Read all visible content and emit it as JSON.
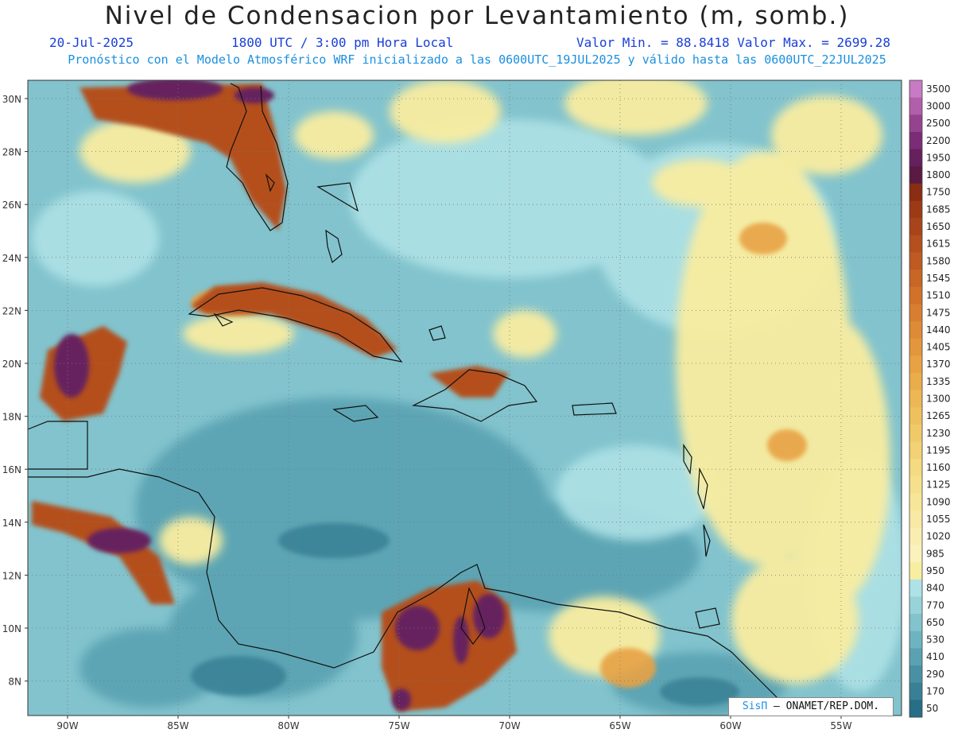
{
  "title": "Nivel de Condensacion por Levantamiento (m, somb.)",
  "date": "20-Jul-2025",
  "time": "1800 UTC / 3:00 pm Hora Local",
  "value_range": "Valor Min. = 88.8418  Valor Max. = 2699.28",
  "model_info": "Pronóstico con el Modelo Atmosférico WRF inicializado a las 0600UTC_19JUL2025 y válido hasta las  0600UTC_22JUL2025",
  "lat_labels": [
    "30N",
    "28N",
    "26N",
    "24N",
    "22N",
    "20N",
    "18N",
    "16N",
    "14N",
    "12N",
    "10N",
    "8N"
  ],
  "lon_labels": [
    "90W",
    "85W",
    "80W",
    "75W",
    "70W",
    "65W",
    "60W",
    "55W"
  ],
  "colorbar": {
    "levels": [
      "3500",
      "3000",
      "2500",
      "2200",
      "1950",
      "1800",
      "1750",
      "1685",
      "1650",
      "1615",
      "1580",
      "1545",
      "1510",
      "1475",
      "1440",
      "1405",
      "1370",
      "1335",
      "1300",
      "1265",
      "1230",
      "1195",
      "1160",
      "1125",
      "1090",
      "1055",
      "1020",
      "985",
      "950",
      "840",
      "770",
      "650",
      "530",
      "410",
      "290",
      "170",
      "50"
    ],
    "colors": [
      "#c87ac4",
      "#b25fab",
      "#96438f",
      "#7c2c77",
      "#66205e",
      "#5a1a44",
      "#8a2d12",
      "#9c3a16",
      "#a8441a",
      "#b44f1e",
      "#be5a22",
      "#c86626",
      "#d0722a",
      "#d87e30",
      "#de8a36",
      "#e3963c",
      "#e8a244",
      "#eaad4c",
      "#ecb754",
      "#eec15e",
      "#f0ca68",
      "#f2d274",
      "#f4da80",
      "#f6e08c",
      "#f7e698",
      "#f8eaa4",
      "#f9eeb0",
      "#faf2bc",
      "#f9eda0",
      "#aee2e6",
      "#98d3da",
      "#82c3cd",
      "#6eb3c0",
      "#5aa2b2",
      "#4891a4",
      "#388095",
      "#266f86"
    ]
  },
  "credit": {
    "brand": "SisΠ",
    "org": "– ONAMET/REP.DOM."
  }
}
